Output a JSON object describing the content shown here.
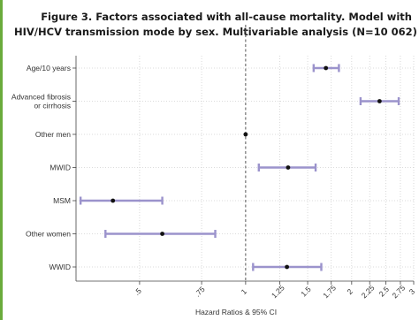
{
  "title": {
    "line1": "Figure 3. Factors associated with all-cause mortality. Model with",
    "line2": "HIV/HCV transmission mode by sex. Multivariable analysis (N=10 062)"
  },
  "colors": {
    "accent": "#6aab3c",
    "ci": "#9b93cc",
    "point": "#111111",
    "grid": "#cfcfcf",
    "reference_line": "#555555"
  },
  "chart_data": {
    "type": "forest",
    "title": "Figure 3. Factors associated with all-cause mortality. Model with HIV/HCV transmission mode by sex. Multivariable analysis (N=10 062)",
    "xlabel": "Hazard Ratios & 95% CI",
    "x_scale": "log",
    "xlim": [
      0.33,
      3.0
    ],
    "reference_value": 1,
    "grid": true,
    "x_ticks": [
      {
        "value": 0.5,
        "label": ".5"
      },
      {
        "value": 0.75,
        "label": ".75"
      },
      {
        "value": 1,
        "label": "1"
      },
      {
        "value": 1.25,
        "label": "1.25"
      },
      {
        "value": 1.5,
        "label": "1.5"
      },
      {
        "value": 1.75,
        "label": "1.75"
      },
      {
        "value": 2,
        "label": "2"
      },
      {
        "value": 2.25,
        "label": "2.25"
      },
      {
        "value": 2.5,
        "label": "2.5"
      },
      {
        "value": 2.75,
        "label": "2.75"
      },
      {
        "value": 3,
        "label": "3"
      }
    ],
    "rows": [
      {
        "label": [
          "Age/10 years"
        ],
        "hr": 1.69,
        "lo": 1.56,
        "hi": 1.84
      },
      {
        "label": [
          "Advanced fibrosis",
          "or cirrhosis"
        ],
        "hr": 2.4,
        "lo": 2.12,
        "hi": 2.72
      },
      {
        "label": [
          "Other men"
        ],
        "hr": 1.0,
        "lo": null,
        "hi": null
      },
      {
        "label": [
          "MWID"
        ],
        "hr": 1.32,
        "lo": 1.09,
        "hi": 1.58
      },
      {
        "label": [
          "MSM"
        ],
        "hr": 0.42,
        "lo": 0.34,
        "hi": 0.58
      },
      {
        "label": [
          "Other women"
        ],
        "hr": 0.58,
        "lo": 0.4,
        "hi": 0.82
      },
      {
        "label": [
          "WWID"
        ],
        "hr": 1.31,
        "lo": 1.05,
        "hi": 1.64
      }
    ]
  }
}
